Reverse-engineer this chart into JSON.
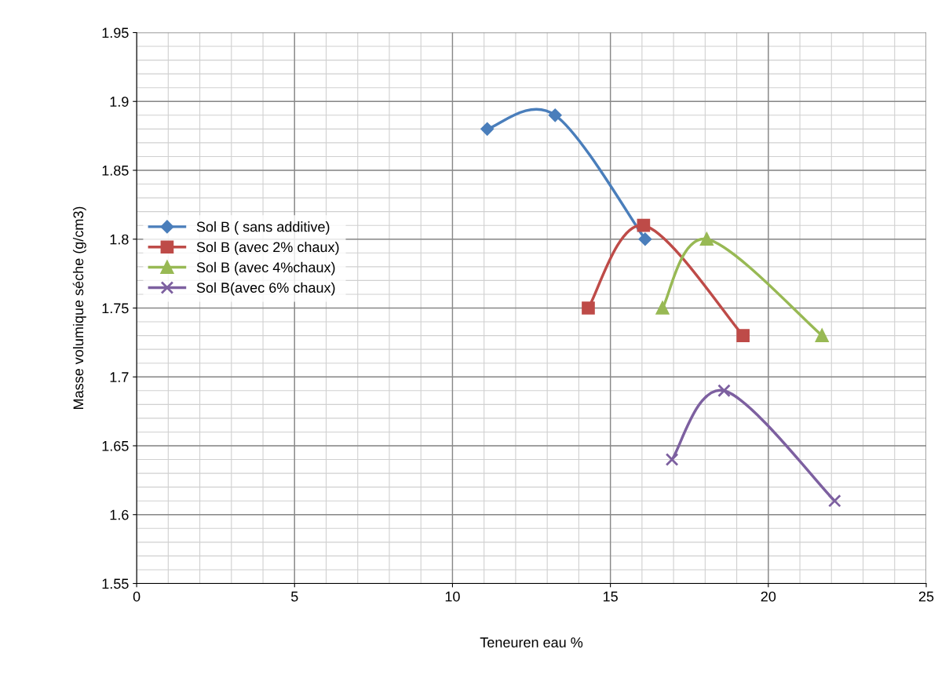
{
  "chart_data": {
    "type": "line",
    "xlabel": "Teneuren eau %",
    "ylabel": "Masse volumique séche (g/cm3)",
    "xlim": [
      0,
      25
    ],
    "xticks": [
      0,
      5,
      10,
      15,
      20,
      25
    ],
    "ylim": [
      1.55,
      1.95
    ],
    "yticks": [
      1.55,
      1.6,
      1.65,
      1.7,
      1.75,
      1.8,
      1.85,
      1.9,
      1.95
    ],
    "grid": true,
    "legend": "center left",
    "series": [
      {
        "name": "Sol B ( sans additive)",
        "color": "#4a7ebb",
        "marker": "diamond",
        "x": [
          11.1,
          13.25,
          16.1
        ],
        "values": [
          1.88,
          1.89,
          1.8
        ]
      },
      {
        "name": "Sol B (avec 2% chaux)",
        "color": "#be4b48",
        "marker": "square",
        "x": [
          14.3,
          16.05,
          19.2
        ],
        "values": [
          1.75,
          1.81,
          1.73
        ]
      },
      {
        "name": "Sol B (avec 4%chaux)",
        "color": "#98b954",
        "marker": "triangle",
        "x": [
          16.65,
          18.05,
          21.7
        ],
        "values": [
          1.75,
          1.8,
          1.73
        ]
      },
      {
        "name": "Sol B(avec 6% chaux)",
        "color": "#7d60a0",
        "marker": "cross",
        "x": [
          16.95,
          18.6,
          22.1
        ],
        "values": [
          1.64,
          1.69,
          1.61
        ]
      }
    ]
  }
}
